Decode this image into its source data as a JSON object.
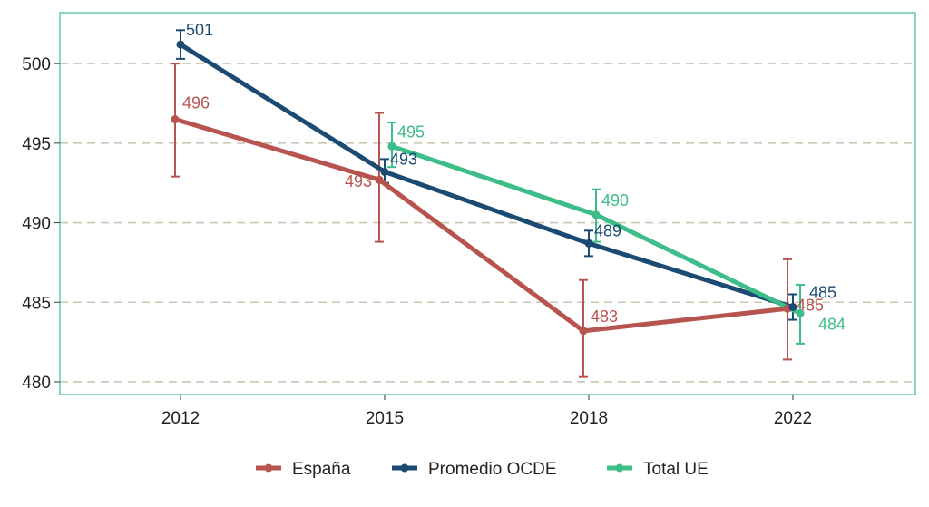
{
  "chart_data": {
    "type": "line",
    "title": "",
    "xlabel": "",
    "ylabel": "",
    "categories": [
      "2012",
      "2015",
      "2018",
      "2022"
    ],
    "ylim": [
      479.2,
      503.2
    ],
    "yticks": [
      480,
      485,
      490,
      495,
      500
    ],
    "grid": "horizontal dashed",
    "legend_position": "bottom",
    "series": [
      {
        "name": "España",
        "color": "#b85450",
        "points": [
          {
            "x": "2012",
            "y": 496.5,
            "err_low": 492.9,
            "err_high": 500.0,
            "label": "496"
          },
          {
            "x": "2015",
            "y": 492.7,
            "err_low": 488.8,
            "err_high": 496.9,
            "label": "493"
          },
          {
            "x": "2018",
            "y": 483.2,
            "err_low": 480.3,
            "err_high": 486.4,
            "label": "483"
          },
          {
            "x": "2022",
            "y": 484.6,
            "err_low": 481.4,
            "err_high": 487.7,
            "label": "485"
          }
        ]
      },
      {
        "name": "Promedio OCDE",
        "color": "#1b4a72",
        "points": [
          {
            "x": "2012",
            "y": 501.2,
            "err_low": 500.3,
            "err_high": 502.1,
            "label": "501"
          },
          {
            "x": "2015",
            "y": 493.2,
            "err_low": 492.5,
            "err_high": 494.0,
            "label": "493"
          },
          {
            "x": "2018",
            "y": 488.7,
            "err_low": 487.9,
            "err_high": 489.5,
            "label": "489"
          },
          {
            "x": "2022",
            "y": 484.7,
            "err_low": 483.9,
            "err_high": 485.5,
            "label": "485"
          }
        ]
      },
      {
        "name": "Total UE",
        "color": "#3dbd87",
        "points": [
          {
            "x": "2015",
            "y": 494.8,
            "err_low": 493.5,
            "err_high": 496.3,
            "label": "495"
          },
          {
            "x": "2018",
            "y": 490.5,
            "err_low": 488.8,
            "err_high": 492.1,
            "label": "490"
          },
          {
            "x": "2022",
            "y": 484.3,
            "err_low": 482.4,
            "err_high": 486.1,
            "label": "484"
          }
        ]
      }
    ]
  }
}
